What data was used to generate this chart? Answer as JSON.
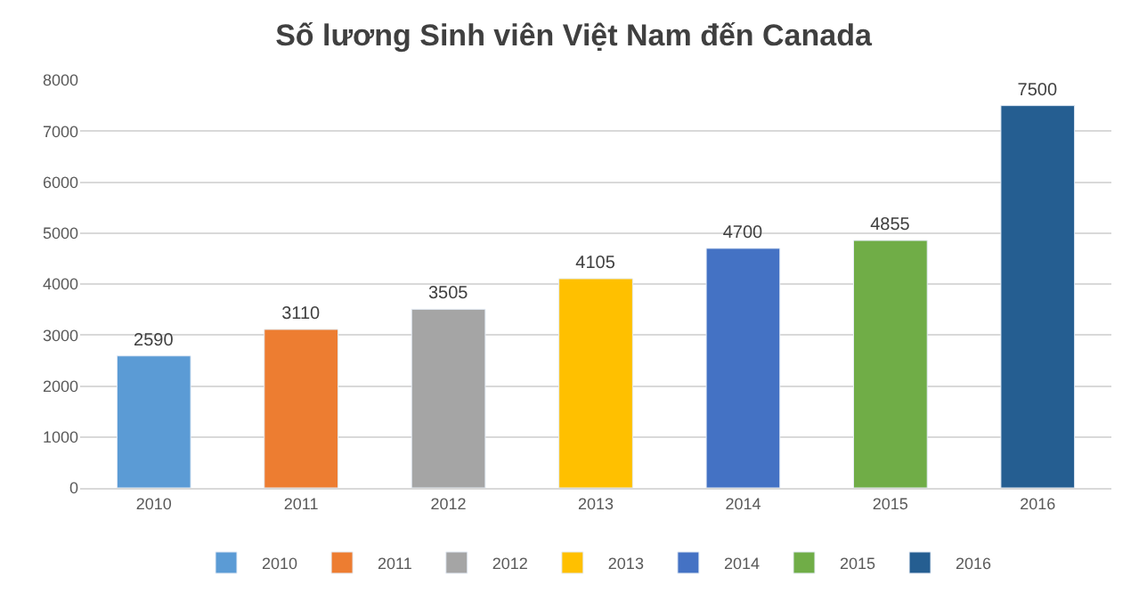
{
  "chart_data": {
    "type": "bar",
    "title": "Số lương Sinh viên Việt Nam đến Canada",
    "categories": [
      "2010",
      "2011",
      "2012",
      "2013",
      "2014",
      "2015",
      "2016"
    ],
    "series": [
      {
        "name": "2010",
        "color": "#5b9bd5",
        "values": [
          2590,
          null,
          null,
          null,
          null,
          null,
          null
        ]
      },
      {
        "name": "2011",
        "color": "#ed7d31",
        "values": [
          null,
          3110,
          null,
          null,
          null,
          null,
          null
        ]
      },
      {
        "name": "2012",
        "color": "#a5a5a5",
        "values": [
          null,
          null,
          3505,
          null,
          null,
          null,
          null
        ]
      },
      {
        "name": "2013",
        "color": "#ffc000",
        "values": [
          null,
          null,
          null,
          4105,
          null,
          null,
          null
        ]
      },
      {
        "name": "2014",
        "color": "#4472c4",
        "values": [
          null,
          null,
          null,
          null,
          4700,
          null,
          null
        ]
      },
      {
        "name": "2015",
        "color": "#70ad47",
        "values": [
          null,
          null,
          null,
          null,
          null,
          4855,
          null
        ]
      },
      {
        "name": "2016",
        "color": "#255e91",
        "values": [
          null,
          null,
          null,
          null,
          null,
          null,
          7500
        ]
      }
    ],
    "ylim": [
      0,
      8000
    ],
    "yticks": [
      0,
      1000,
      2000,
      3000,
      4000,
      5000,
      6000,
      7000,
      8000
    ],
    "grid": "y",
    "legend": "bottom",
    "data_labels": true
  }
}
